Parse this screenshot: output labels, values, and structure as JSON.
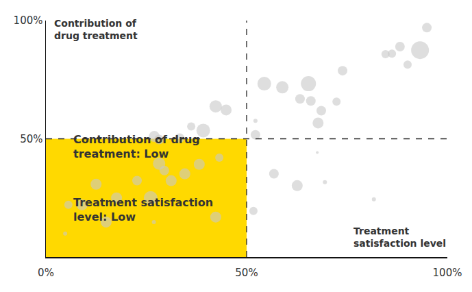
{
  "chart_data": {
    "type": "scatter",
    "marker": "bubble",
    "x_label": "Treatment\nsatisfaction level",
    "y_label": "Contribution of\ndrug treatment",
    "annotations": [
      "Contribution of drug\ntreatment: Low",
      "Treatment satisfaction\nlevel: Low"
    ],
    "xlim": [
      0,
      100
    ],
    "ylim": [
      0,
      100
    ],
    "xticks": [
      {
        "value": 0,
        "label": "0%"
      },
      {
        "value": 50,
        "label": "50%"
      },
      {
        "value": 100,
        "label": "100%"
      }
    ],
    "yticks": [
      {
        "value": 50,
        "label": "50%"
      },
      {
        "value": 100,
        "label": "100%"
      }
    ],
    "grid": false,
    "color": "#c8c8c8",
    "highlight": {
      "xlim": [
        0,
        50
      ],
      "ylim": [
        0,
        50
      ],
      "color": "#ffd900"
    },
    "quadrant_lines": {
      "x": 50,
      "y": 50,
      "line_style": "dashed",
      "color": "#222222"
    },
    "x": [
      94.9,
      93.2,
      88.2,
      84.6,
      86.2,
      90.1,
      73.9,
      65.4,
      58.9,
      54.4,
      63.3,
      66.0,
      68.6,
      72.4,
      67.8,
      52.2,
      52.2,
      67.6,
      69.5,
      56.8,
      62.6,
      81.7,
      51.7,
      42.3,
      44.9,
      39.2,
      36.2,
      27.0,
      33.3,
      28.2,
      43.2,
      38.2,
      28.2,
      34.6,
      31.2,
      26.1,
      17.6,
      9.0,
      5.6,
      15.0,
      42.3,
      4.8,
      26.9,
      29.5,
      12.5,
      22.7
    ],
    "y": [
      97.0,
      87.5,
      89.0,
      85.8,
      86.0,
      81.4,
      78.8,
      73.3,
      71.8,
      73.3,
      66.9,
      66.0,
      61.9,
      65.7,
      56.7,
      51.7,
      57.6,
      44.2,
      31.7,
      35.2,
      30.2,
      24.4,
      19.5,
      63.7,
      62.2,
      53.5,
      55.2,
      51.0,
      50.3,
      49.7,
      42.0,
      39.2,
      39.5,
      35.2,
      32.3,
      25.0,
      25.0,
      22.1,
      22.1,
      14.8,
      16.9,
      9.9,
      14.8,
      36.6,
      30.8,
      32.3
    ],
    "sizes": [
      7,
      13,
      7,
      6,
      6,
      6,
      7,
      11,
      9,
      10,
      7,
      7,
      7,
      6,
      8,
      7,
      3,
      2,
      3,
      7,
      8,
      3,
      6,
      9,
      8,
      10,
      6,
      8,
      7,
      7,
      6,
      8,
      9,
      8,
      8,
      10,
      8,
      8,
      6,
      8,
      8,
      3,
      3,
      7,
      8,
      7
    ]
  }
}
